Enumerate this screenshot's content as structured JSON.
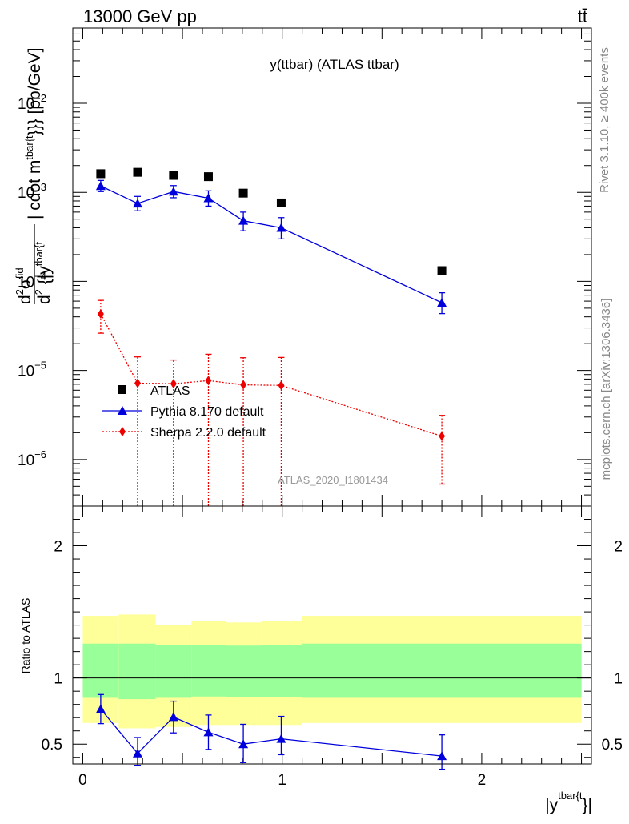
{
  "header": {
    "energy_label": "13000 GeV pp",
    "process_label": "tt̄"
  },
  "side_labels": {
    "rivet": "Rivet 3.1.10, ≥ 400k events",
    "mcplots": "mcplots.cern.ch [arXiv:1306.3436]"
  },
  "chart_data": [
    {
      "type": "scatter",
      "title": "y(ttbar) (ATLAS ttbar)",
      "watermark": "ATLAS_2020_I1801434",
      "ylabel_parts": {
        "d1": "d",
        "sup2": "2",
        "sigma": "σ",
        "fid": "fid",
        "d2": "d",
        "sup2b": "2",
        "rest": " {|y",
        "tbar": "tbar{t",
        "rest2": "| cdot m",
        "tbar2": "tbar{t",
        "rest3": "}}} [pb/GeV]"
      },
      "yscale": "log",
      "xlim": [
        -0.05,
        2.55
      ],
      "ylim": [
        3e-07,
        0.07
      ],
      "yticks": [
        {
          "value": 1e-06,
          "base": "10",
          "exp": "−6"
        },
        {
          "value": 1e-05,
          "base": "10",
          "exp": "−5"
        },
        {
          "value": 0.0001,
          "base": "10",
          "exp": "−4"
        },
        {
          "value": 0.001,
          "base": "10",
          "exp": "−3"
        },
        {
          "value": 0.01,
          "base": "10",
          "exp": "−2"
        }
      ],
      "legend": {
        "position": "bottom-left",
        "entries": [
          "ATLAS",
          "Pythia 8.170 default",
          "Sherpa 2.2.0 default"
        ]
      },
      "x_centers": [
        0.09,
        0.275,
        0.455,
        0.63,
        0.805,
        0.995,
        1.8
      ],
      "x_edges": [
        0.0,
        0.18,
        0.365,
        0.545,
        0.72,
        0.895,
        1.1,
        2.5
      ],
      "series": [
        {
          "name": "ATLAS",
          "marker": "square",
          "color": "#000000",
          "values": [
            0.00162,
            0.00168,
            0.00155,
            0.0015,
            0.00098,
            0.00076,
            0.000132
          ]
        },
        {
          "name": "Pythia 8.170 default",
          "marker": "triangle",
          "line": "solid",
          "color": "#0000dd",
          "values": [
            0.00118,
            0.00075,
            0.00102,
            0.00086,
            0.00048,
            0.0004,
            5.75e-05
          ],
          "err_low": [
            0.00016,
            0.00013,
            0.00015,
            0.00016,
            0.00011,
            0.0001,
            1.4e-05
          ],
          "err_high": [
            0.00018,
            0.00015,
            0.00017,
            0.00018,
            0.00012,
            0.00012,
            1.7e-05
          ]
        },
        {
          "name": "Sherpa 2.2.0 default",
          "marker": "diamond",
          "line": "dotted",
          "color": "#ee0000",
          "values": [
            4.32e-05,
            7.2e-06,
            7.1e-06,
            7.7e-06,
            6.9e-06,
            6.8e-06,
            1.83e-06
          ],
          "err_low": [
            1.7e-05,
            7.2e-06,
            7.1e-06,
            7.7e-06,
            6.9e-06,
            6.8e-06,
            1.3e-06
          ],
          "err_high": [
            1.8e-05,
            7e-06,
            6e-06,
            7.5e-06,
            7e-06,
            7.2e-06,
            1.3e-06
          ]
        }
      ]
    },
    {
      "type": "scatter",
      "ylabel": "Ratio to ATLAS",
      "xlabel_parts": {
        "pre": "|y",
        "sup": "tbar{t",
        "post": "}|"
      },
      "xlim": [
        -0.05,
        2.55
      ],
      "ylim": [
        0.35,
        2.3
      ],
      "xticks": [
        {
          "value": 0,
          "label": "0"
        },
        {
          "value": 1,
          "label": "1"
        },
        {
          "value": 2,
          "label": "2"
        }
      ],
      "yticks": [
        {
          "value": 0.5,
          "label": "0.5"
        },
        {
          "value": 1,
          "label": "1"
        },
        {
          "value": 2,
          "label": "2"
        }
      ],
      "bands": {
        "yellow_color": "#ffff99",
        "green_color": "#99ff99",
        "yellow_low": [
          0.66,
          0.62,
          0.63,
          0.645,
          0.645,
          0.645,
          0.66
        ],
        "yellow_high": [
          1.47,
          1.48,
          1.4,
          1.43,
          1.42,
          1.43,
          1.47
        ],
        "green_low": [
          0.85,
          0.84,
          0.85,
          0.86,
          0.855,
          0.855,
          0.85
        ],
        "green_high": [
          1.26,
          1.26,
          1.25,
          1.25,
          1.245,
          1.25,
          1.26
        ]
      },
      "series": [
        {
          "name": "Pythia 8.170 default",
          "marker": "triangle",
          "color": "#0000dd",
          "values": [
            0.765,
            0.43,
            0.705,
            0.59,
            0.5,
            0.54,
            0.41
          ],
          "err_low": [
            0.11,
            0.09,
            0.12,
            0.13,
            0.14,
            0.12,
            0.1
          ],
          "err_high": [
            0.11,
            0.12,
            0.12,
            0.13,
            0.15,
            0.17,
            0.16
          ]
        }
      ]
    }
  ]
}
